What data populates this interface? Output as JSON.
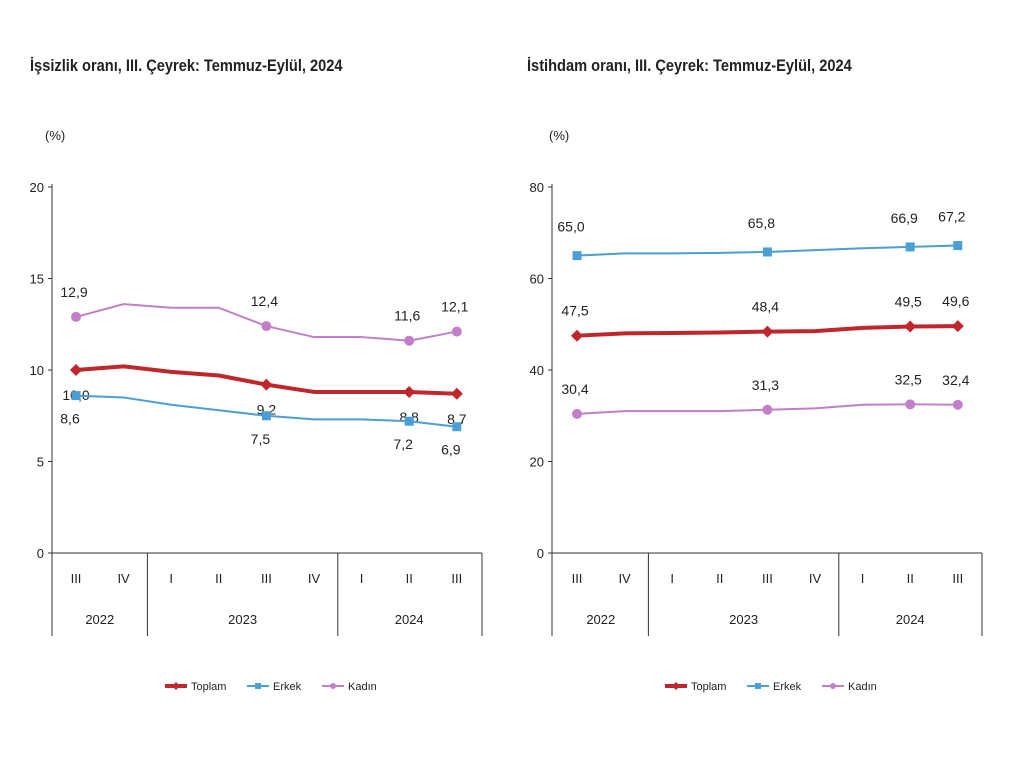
{
  "chart_data": [
    {
      "type": "line",
      "title": "İşsizlik oranı, III. Çeyrek: Temmuz-Eylül, 2024",
      "unit": "(%)",
      "categories": [
        "III",
        "IV",
        "I",
        "II",
        "III",
        "IV",
        "I",
        "II",
        "III"
      ],
      "years": [
        {
          "label": "2022",
          "span": 2
        },
        {
          "label": "2023",
          "span": 4
        },
        {
          "label": "2024",
          "span": 3
        }
      ],
      "ylim": [
        0,
        20
      ],
      "yticks": [
        "0",
        "5",
        "10",
        "15",
        "20"
      ],
      "series": [
        {
          "name": "Toplam",
          "color": "#c0272d",
          "values": [
            10.0,
            10.2,
            9.9,
            9.7,
            9.2,
            8.8,
            8.8,
            8.8,
            8.7
          ],
          "labels": [
            "10,0",
            "",
            "",
            "",
            "9,2",
            "",
            "",
            "8,8",
            "8,7"
          ]
        },
        {
          "name": "Erkek",
          "color": "#4a9fd5",
          "values": [
            8.6,
            8.5,
            8.1,
            7.8,
            7.5,
            7.3,
            7.3,
            7.2,
            6.9
          ],
          "labels": [
            "8,6",
            "",
            "",
            "",
            "7,5",
            "",
            "",
            "7,2",
            "6,9"
          ]
        },
        {
          "name": "Kadın",
          "color": "#c27fc9",
          "values": [
            12.9,
            13.6,
            13.4,
            13.4,
            12.4,
            11.8,
            11.8,
            11.6,
            12.1
          ],
          "labels": [
            "12,9",
            "",
            "",
            "",
            "12,4",
            "",
            "",
            "11,6",
            "12,1"
          ]
        }
      ]
    },
    {
      "type": "line",
      "title": "İstihdam oranı, III. Çeyrek: Temmuz-Eylül, 2024",
      "unit": "(%)",
      "categories": [
        "III",
        "IV",
        "I",
        "II",
        "III",
        "IV",
        "I",
        "II",
        "III"
      ],
      "years": [
        {
          "label": "2022",
          "span": 2
        },
        {
          "label": "2023",
          "span": 4
        },
        {
          "label": "2024",
          "span": 3
        }
      ],
      "ylim": [
        0,
        80
      ],
      "yticks": [
        "0",
        "20",
        "40",
        "60",
        "80"
      ],
      "series": [
        {
          "name": "Toplam",
          "color": "#c0272d",
          "values": [
            47.5,
            48.0,
            48.1,
            48.2,
            48.4,
            48.5,
            49.2,
            49.5,
            49.6
          ],
          "labels": [
            "47,5",
            "",
            "",
            "",
            "48,4",
            "",
            "",
            "49,5",
            "49,6"
          ]
        },
        {
          "name": "Erkek",
          "color": "#4a9fd5",
          "values": [
            65.0,
            65.5,
            65.5,
            65.6,
            65.8,
            66.2,
            66.6,
            66.9,
            67.2
          ],
          "labels": [
            "65,0",
            "",
            "",
            "",
            "65,8",
            "",
            "",
            "66,9",
            "67,2"
          ]
        },
        {
          "name": "Kadın",
          "color": "#c27fc9",
          "values": [
            30.4,
            31.0,
            31.0,
            31.0,
            31.3,
            31.6,
            32.4,
            32.5,
            32.4
          ],
          "labels": [
            "30,4",
            "",
            "",
            "",
            "31,3",
            "",
            "",
            "32,5",
            "32,4"
          ]
        }
      ]
    }
  ]
}
